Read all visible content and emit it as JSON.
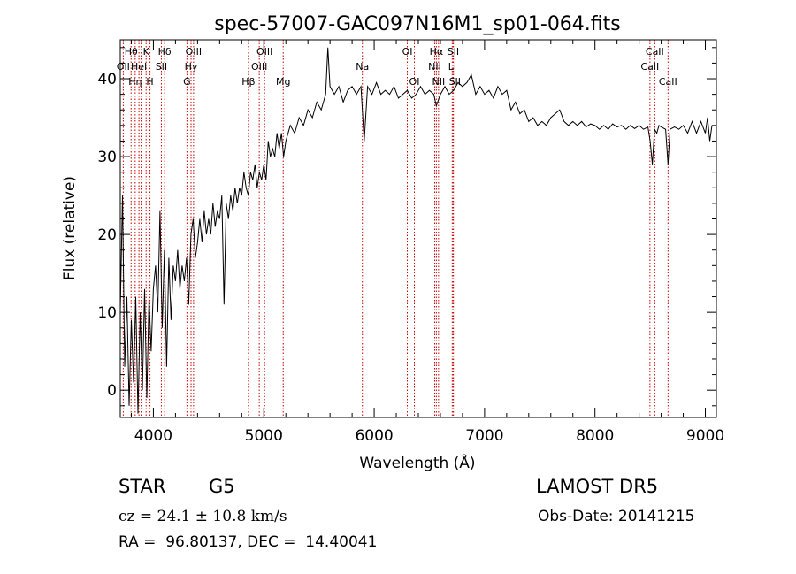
{
  "chart_data": {
    "type": "line",
    "title": "spec-57007-GAC097N16M1_sp01-064.fits",
    "xlabel": "Wavelength (Å)",
    "ylabel": "Flux (relative)",
    "xlim": [
      3700,
      9100
    ],
    "ylim": [
      -3.5,
      45
    ],
    "xticks": [
      4000,
      5000,
      6000,
      7000,
      8000,
      9000
    ],
    "yticks": [
      0,
      10,
      20,
      30,
      40
    ],
    "grid": false,
    "series": [
      {
        "points": [
          [
            3700,
            10
          ],
          [
            3720,
            25
          ],
          [
            3740,
            3
          ],
          [
            3760,
            12
          ],
          [
            3780,
            -2
          ],
          [
            3800,
            9
          ],
          [
            3820,
            1
          ],
          [
            3840,
            12
          ],
          [
            3860,
            -3
          ],
          [
            3880,
            10
          ],
          [
            3900,
            0
          ],
          [
            3920,
            13
          ],
          [
            3940,
            -1
          ],
          [
            3960,
            12
          ],
          [
            3980,
            5
          ],
          [
            4000,
            13
          ],
          [
            4020,
            16
          ],
          [
            4040,
            10
          ],
          [
            4060,
            23
          ],
          [
            4080,
            8
          ],
          [
            4100,
            18
          ],
          [
            4120,
            3
          ],
          [
            4140,
            17
          ],
          [
            4160,
            9
          ],
          [
            4180,
            16
          ],
          [
            4200,
            14
          ],
          [
            4220,
            18
          ],
          [
            4240,
            13
          ],
          [
            4260,
            16
          ],
          [
            4280,
            14
          ],
          [
            4300,
            17
          ],
          [
            4320,
            11
          ],
          [
            4340,
            20
          ],
          [
            4360,
            22
          ],
          [
            4380,
            17
          ],
          [
            4400,
            19
          ],
          [
            4420,
            22
          ],
          [
            4440,
            19
          ],
          [
            4460,
            23
          ],
          [
            4480,
            20
          ],
          [
            4500,
            22
          ],
          [
            4520,
            20
          ],
          [
            4540,
            24
          ],
          [
            4560,
            21
          ],
          [
            4580,
            23
          ],
          [
            4600,
            22
          ],
          [
            4620,
            25
          ],
          [
            4640,
            11
          ],
          [
            4660,
            24
          ],
          [
            4680,
            22
          ],
          [
            4700,
            25
          ],
          [
            4720,
            23
          ],
          [
            4740,
            26
          ],
          [
            4760,
            24
          ],
          [
            4780,
            26
          ],
          [
            4800,
            25
          ],
          [
            4820,
            28
          ],
          [
            4840,
            26
          ],
          [
            4860,
            25
          ],
          [
            4880,
            28
          ],
          [
            4900,
            27
          ],
          [
            4920,
            29
          ],
          [
            4940,
            26
          ],
          [
            4960,
            28
          ],
          [
            4980,
            27
          ],
          [
            5000,
            29
          ],
          [
            5020,
            27
          ],
          [
            5040,
            32
          ],
          [
            5060,
            30
          ],
          [
            5080,
            31
          ],
          [
            5100,
            30
          ],
          [
            5120,
            33
          ],
          [
            5140,
            31
          ],
          [
            5160,
            33
          ],
          [
            5180,
            30
          ],
          [
            5200,
            32
          ],
          [
            5240,
            34
          ],
          [
            5280,
            33
          ],
          [
            5320,
            35
          ],
          [
            5360,
            34
          ],
          [
            5400,
            36
          ],
          [
            5440,
            35
          ],
          [
            5480,
            37
          ],
          [
            5520,
            36
          ],
          [
            5560,
            38
          ],
          [
            5580,
            44
          ],
          [
            5600,
            39
          ],
          [
            5640,
            38
          ],
          [
            5680,
            39
          ],
          [
            5720,
            37
          ],
          [
            5760,
            38.5
          ],
          [
            5800,
            39
          ],
          [
            5840,
            38
          ],
          [
            5880,
            39
          ],
          [
            5910,
            32
          ],
          [
            5940,
            39
          ],
          [
            5980,
            38
          ],
          [
            6020,
            39.5
          ],
          [
            6060,
            38
          ],
          [
            6100,
            38.5
          ],
          [
            6140,
            38
          ],
          [
            6180,
            39
          ],
          [
            6220,
            37.5
          ],
          [
            6260,
            38
          ],
          [
            6300,
            38.5
          ],
          [
            6340,
            37.5
          ],
          [
            6380,
            38
          ],
          [
            6420,
            39
          ],
          [
            6460,
            38
          ],
          [
            6500,
            38.5
          ],
          [
            6540,
            38
          ],
          [
            6563,
            36.5
          ],
          [
            6600,
            38
          ],
          [
            6640,
            39
          ],
          [
            6680,
            38
          ],
          [
            6720,
            38.5
          ],
          [
            6760,
            39.5
          ],
          [
            6800,
            39
          ],
          [
            6840,
            39.5
          ],
          [
            6880,
            40.5
          ],
          [
            6920,
            38
          ],
          [
            6960,
            39
          ],
          [
            7000,
            38
          ],
          [
            7040,
            38.5
          ],
          [
            7080,
            37.5
          ],
          [
            7120,
            39
          ],
          [
            7160,
            38
          ],
          [
            7200,
            38.5
          ],
          [
            7240,
            36
          ],
          [
            7280,
            37
          ],
          [
            7320,
            35.5
          ],
          [
            7360,
            36
          ],
          [
            7400,
            34.5
          ],
          [
            7440,
            35
          ],
          [
            7480,
            34
          ],
          [
            7520,
            34.5
          ],
          [
            7560,
            34
          ],
          [
            7600,
            35
          ],
          [
            7640,
            35.5
          ],
          [
            7680,
            36
          ],
          [
            7720,
            34.5
          ],
          [
            7760,
            34
          ],
          [
            7800,
            34.5
          ],
          [
            7840,
            34
          ],
          [
            7880,
            34.5
          ],
          [
            7920,
            33.8
          ],
          [
            7960,
            34.2
          ],
          [
            8000,
            34
          ],
          [
            8040,
            33.5
          ],
          [
            8080,
            34
          ],
          [
            8120,
            33.5
          ],
          [
            8160,
            34.2
          ],
          [
            8200,
            33.8
          ],
          [
            8240,
            34
          ],
          [
            8280,
            33.5
          ],
          [
            8320,
            34
          ],
          [
            8360,
            33.6
          ],
          [
            8400,
            34
          ],
          [
            8440,
            33.5
          ],
          [
            8480,
            33.8
          ],
          [
            8500,
            32
          ],
          [
            8520,
            29
          ],
          [
            8540,
            33.5
          ],
          [
            8560,
            33
          ],
          [
            8580,
            34
          ],
          [
            8600,
            33.8
          ],
          [
            8640,
            33.5
          ],
          [
            8662,
            29
          ],
          [
            8680,
            33.5
          ],
          [
            8720,
            33.8
          ],
          [
            8760,
            33.5
          ],
          [
            8800,
            34
          ],
          [
            8840,
            33
          ],
          [
            8880,
            34.5
          ],
          [
            8920,
            33
          ],
          [
            8960,
            34.5
          ],
          [
            9000,
            33
          ],
          [
            9020,
            35
          ],
          [
            9040,
            32
          ],
          [
            9060,
            34
          ]
        ]
      }
    ],
    "lines": [
      {
        "x": 3727,
        "label": "OII",
        "row": 1
      },
      {
        "x": 3798,
        "label": "Hθ",
        "row": 0
      },
      {
        "x": 3835,
        "label": "Hη",
        "row": 2
      },
      {
        "x": 3869,
        "label": "HeI",
        "row": 1
      },
      {
        "x": 3889,
        "label": "",
        "row": 1
      },
      {
        "x": 3934,
        "label": "K",
        "row": 0
      },
      {
        "x": 3969,
        "label": "H",
        "row": 2
      },
      {
        "x": 4072,
        "label": "SII",
        "row": 1
      },
      {
        "x": 4102,
        "label": "Hδ",
        "row": 0
      },
      {
        "x": 4304,
        "label": "G",
        "row": 2
      },
      {
        "x": 4341,
        "label": "Hγ",
        "row": 1
      },
      {
        "x": 4364,
        "label": "OIII",
        "row": 0
      },
      {
        "x": 4861,
        "label": "Hβ",
        "row": 2
      },
      {
        "x": 4959,
        "label": "OIII",
        "row": 1
      },
      {
        "x": 5007,
        "label": "OIII",
        "row": 0
      },
      {
        "x": 5176,
        "label": "Mg",
        "row": 2
      },
      {
        "x": 5893,
        "label": "Na",
        "row": 1
      },
      {
        "x": 6300,
        "label": "OI",
        "row": 0
      },
      {
        "x": 6364,
        "label": "OI",
        "row": 2
      },
      {
        "x": 6548,
        "label": "NII",
        "row": 1
      },
      {
        "x": 6563,
        "label": "Hα",
        "row": 0
      },
      {
        "x": 6583,
        "label": "NII",
        "row": 2
      },
      {
        "x": 6707,
        "label": "Li",
        "row": 1
      },
      {
        "x": 6716,
        "label": "SII",
        "row": 0
      },
      {
        "x": 6731,
        "label": "SII",
        "row": 2
      },
      {
        "x": 8498,
        "label": "CaII",
        "row": 1
      },
      {
        "x": 8542,
        "label": "CaII",
        "row": 0
      },
      {
        "x": 8662,
        "label": "CaII",
        "row": 2
      }
    ]
  },
  "info": {
    "object_class": "STAR",
    "subclass": "G5",
    "survey": "LAMOST DR5",
    "cz_text": "cz = 24.1 ± 10.8 km/s",
    "obs_date": "Obs-Date: 20141215",
    "radec": "RA =  96.80137, DEC =  14.40041"
  },
  "colors": {
    "line_marker": "#cc0000",
    "spectrum": "#000000",
    "axes": "#000000"
  }
}
